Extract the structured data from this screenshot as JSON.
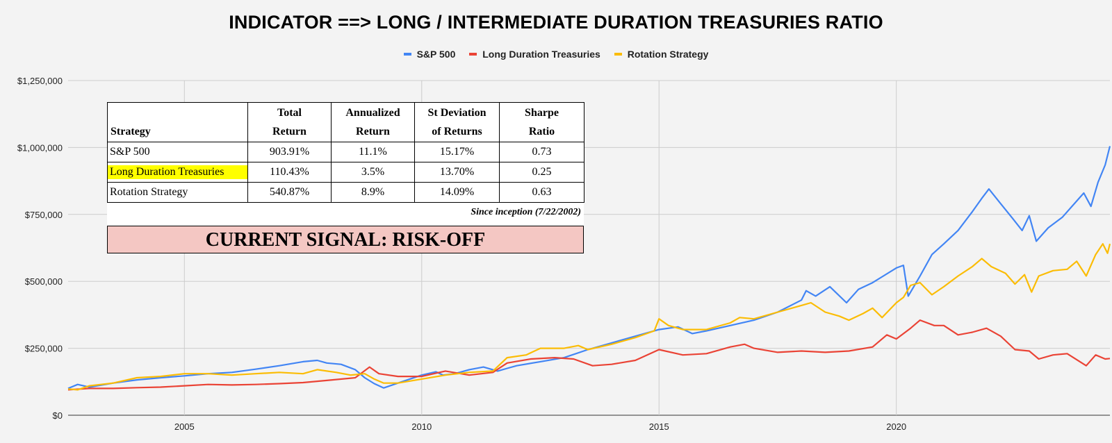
{
  "chart_data": {
    "type": "line",
    "title": "INDICATOR ==> LONG / INTERMEDIATE DURATION TREASURIES RATIO",
    "ylim": [
      0,
      1250000
    ],
    "xlim": [
      2002.55,
      2024.5
    ],
    "y_ticks": [
      {
        "value": 0,
        "label": "$0"
      },
      {
        "value": 250000,
        "label": "$250,000"
      },
      {
        "value": 500000,
        "label": "$500,000"
      },
      {
        "value": 750000,
        "label": "$750,000"
      },
      {
        "value": 1000000,
        "label": "$1,000,000"
      },
      {
        "value": 1250000,
        "label": "$1,250,000"
      }
    ],
    "x_ticks": [
      {
        "value": 2005,
        "label": "2005"
      },
      {
        "value": 2010,
        "label": "2010"
      },
      {
        "value": 2015,
        "label": "2015"
      },
      {
        "value": 2020,
        "label": "2020"
      }
    ],
    "grid": true,
    "legend_position": "top",
    "series": [
      {
        "name": "S&P 500",
        "color": "#4285f4",
        "points": [
          [
            2002.55,
            100000
          ],
          [
            2002.75,
            115000
          ],
          [
            2003.0,
            105000
          ],
          [
            2003.5,
            120000
          ],
          [
            2004.0,
            132000
          ],
          [
            2004.5,
            140000
          ],
          [
            2005.0,
            147000
          ],
          [
            2005.5,
            155000
          ],
          [
            2006.0,
            160000
          ],
          [
            2006.5,
            172000
          ],
          [
            2007.0,
            185000
          ],
          [
            2007.5,
            200000
          ],
          [
            2007.8,
            205000
          ],
          [
            2008.0,
            195000
          ],
          [
            2008.3,
            190000
          ],
          [
            2008.6,
            170000
          ],
          [
            2008.8,
            140000
          ],
          [
            2009.0,
            118000
          ],
          [
            2009.2,
            102000
          ],
          [
            2009.5,
            120000
          ],
          [
            2010.0,
            150000
          ],
          [
            2010.3,
            162000
          ],
          [
            2010.45,
            150000
          ],
          [
            2010.7,
            155000
          ],
          [
            2011.0,
            170000
          ],
          [
            2011.3,
            180000
          ],
          [
            2011.6,
            165000
          ],
          [
            2011.8,
            175000
          ],
          [
            2012.0,
            185000
          ],
          [
            2012.5,
            200000
          ],
          [
            2013.0,
            215000
          ],
          [
            2013.5,
            245000
          ],
          [
            2014.0,
            270000
          ],
          [
            2014.5,
            295000
          ],
          [
            2015.0,
            320000
          ],
          [
            2015.4,
            330000
          ],
          [
            2015.7,
            305000
          ],
          [
            2016.0,
            315000
          ],
          [
            2016.5,
            335000
          ],
          [
            2017.0,
            355000
          ],
          [
            2017.5,
            385000
          ],
          [
            2018.0,
            430000
          ],
          [
            2018.1,
            465000
          ],
          [
            2018.3,
            445000
          ],
          [
            2018.6,
            480000
          ],
          [
            2018.95,
            420000
          ],
          [
            2019.2,
            470000
          ],
          [
            2019.5,
            495000
          ],
          [
            2020.0,
            550000
          ],
          [
            2020.15,
            560000
          ],
          [
            2020.25,
            445000
          ],
          [
            2020.5,
            520000
          ],
          [
            2020.75,
            600000
          ],
          [
            2021.0,
            640000
          ],
          [
            2021.3,
            690000
          ],
          [
            2021.6,
            760000
          ],
          [
            2021.8,
            810000
          ],
          [
            2021.95,
            845000
          ],
          [
            2022.2,
            790000
          ],
          [
            2022.45,
            735000
          ],
          [
            2022.65,
            690000
          ],
          [
            2022.8,
            745000
          ],
          [
            2022.95,
            650000
          ],
          [
            2023.2,
            700000
          ],
          [
            2023.5,
            740000
          ],
          [
            2023.8,
            800000
          ],
          [
            2023.95,
            830000
          ],
          [
            2024.1,
            780000
          ],
          [
            2024.25,
            870000
          ],
          [
            2024.4,
            935000
          ],
          [
            2024.5,
            1005000
          ]
        ]
      },
      {
        "name": "Long Duration Treasuries",
        "color": "#ea4335",
        "points": [
          [
            2002.55,
            95000
          ],
          [
            2003.0,
            100000
          ],
          [
            2003.5,
            100000
          ],
          [
            2004.0,
            103000
          ],
          [
            2004.5,
            105000
          ],
          [
            2005.0,
            110000
          ],
          [
            2005.5,
            115000
          ],
          [
            2006.0,
            113000
          ],
          [
            2006.5,
            115000
          ],
          [
            2007.0,
            118000
          ],
          [
            2007.5,
            122000
          ],
          [
            2008.0,
            130000
          ],
          [
            2008.6,
            140000
          ],
          [
            2008.9,
            180000
          ],
          [
            2009.1,
            155000
          ],
          [
            2009.5,
            145000
          ],
          [
            2010.0,
            145000
          ],
          [
            2010.5,
            165000
          ],
          [
            2011.0,
            150000
          ],
          [
            2011.5,
            160000
          ],
          [
            2011.8,
            195000
          ],
          [
            2012.3,
            210000
          ],
          [
            2012.8,
            215000
          ],
          [
            2013.2,
            210000
          ],
          [
            2013.6,
            185000
          ],
          [
            2014.0,
            190000
          ],
          [
            2014.5,
            205000
          ],
          [
            2015.0,
            245000
          ],
          [
            2015.5,
            225000
          ],
          [
            2016.0,
            230000
          ],
          [
            2016.5,
            255000
          ],
          [
            2016.8,
            265000
          ],
          [
            2017.0,
            250000
          ],
          [
            2017.5,
            235000
          ],
          [
            2018.0,
            240000
          ],
          [
            2018.5,
            235000
          ],
          [
            2019.0,
            240000
          ],
          [
            2019.5,
            255000
          ],
          [
            2019.8,
            300000
          ],
          [
            2020.0,
            285000
          ],
          [
            2020.3,
            325000
          ],
          [
            2020.5,
            355000
          ],
          [
            2020.8,
            335000
          ],
          [
            2021.0,
            335000
          ],
          [
            2021.3,
            300000
          ],
          [
            2021.6,
            310000
          ],
          [
            2021.9,
            325000
          ],
          [
            2022.2,
            295000
          ],
          [
            2022.5,
            245000
          ],
          [
            2022.8,
            240000
          ],
          [
            2023.0,
            210000
          ],
          [
            2023.3,
            225000
          ],
          [
            2023.6,
            230000
          ],
          [
            2024.0,
            185000
          ],
          [
            2024.2,
            225000
          ],
          [
            2024.4,
            210000
          ],
          [
            2024.5,
            212000
          ]
        ]
      },
      {
        "name": "Rotation Strategy",
        "color": "#fbbc04",
        "points": [
          [
            2002.55,
            98000
          ],
          [
            2002.75,
            95000
          ],
          [
            2003.0,
            110000
          ],
          [
            2003.5,
            120000
          ],
          [
            2004.0,
            140000
          ],
          [
            2004.5,
            145000
          ],
          [
            2005.0,
            155000
          ],
          [
            2005.5,
            155000
          ],
          [
            2006.0,
            150000
          ],
          [
            2006.5,
            155000
          ],
          [
            2007.0,
            160000
          ],
          [
            2007.5,
            155000
          ],
          [
            2007.8,
            170000
          ],
          [
            2008.2,
            160000
          ],
          [
            2008.5,
            150000
          ],
          [
            2008.8,
            155000
          ],
          [
            2009.0,
            135000
          ],
          [
            2009.2,
            120000
          ],
          [
            2009.5,
            120000
          ],
          [
            2010.0,
            135000
          ],
          [
            2010.5,
            150000
          ],
          [
            2011.0,
            160000
          ],
          [
            2011.5,
            165000
          ],
          [
            2011.8,
            215000
          ],
          [
            2012.2,
            225000
          ],
          [
            2012.5,
            250000
          ],
          [
            2013.0,
            250000
          ],
          [
            2013.3,
            260000
          ],
          [
            2013.5,
            245000
          ],
          [
            2014.0,
            265000
          ],
          [
            2014.5,
            290000
          ],
          [
            2014.9,
            315000
          ],
          [
            2015.0,
            360000
          ],
          [
            2015.2,
            335000
          ],
          [
            2015.5,
            320000
          ],
          [
            2016.0,
            320000
          ],
          [
            2016.5,
            345000
          ],
          [
            2016.7,
            365000
          ],
          [
            2017.0,
            360000
          ],
          [
            2017.5,
            385000
          ],
          [
            2018.0,
            410000
          ],
          [
            2018.2,
            420000
          ],
          [
            2018.5,
            385000
          ],
          [
            2018.8,
            370000
          ],
          [
            2019.0,
            355000
          ],
          [
            2019.3,
            380000
          ],
          [
            2019.5,
            400000
          ],
          [
            2019.7,
            365000
          ],
          [
            2020.0,
            420000
          ],
          [
            2020.15,
            440000
          ],
          [
            2020.3,
            485000
          ],
          [
            2020.5,
            495000
          ],
          [
            2020.75,
            450000
          ],
          [
            2021.0,
            480000
          ],
          [
            2021.3,
            520000
          ],
          [
            2021.6,
            555000
          ],
          [
            2021.8,
            585000
          ],
          [
            2022.0,
            555000
          ],
          [
            2022.3,
            530000
          ],
          [
            2022.5,
            490000
          ],
          [
            2022.7,
            525000
          ],
          [
            2022.85,
            460000
          ],
          [
            2023.0,
            520000
          ],
          [
            2023.3,
            540000
          ],
          [
            2023.6,
            545000
          ],
          [
            2023.8,
            575000
          ],
          [
            2024.0,
            520000
          ],
          [
            2024.2,
            600000
          ],
          [
            2024.35,
            640000
          ],
          [
            2024.45,
            605000
          ],
          [
            2024.5,
            640000
          ]
        ]
      }
    ]
  },
  "stats_table": {
    "headers": [
      {
        "line1": "",
        "line2": "Strategy"
      },
      {
        "line1": "Total",
        "line2": "Return"
      },
      {
        "line1": "Annualized",
        "line2": "Return"
      },
      {
        "line1": "St Deviation",
        "line2": "of Returns"
      },
      {
        "line1": "Sharpe",
        "line2": "Ratio"
      }
    ],
    "rows": [
      {
        "strategy": "S&P 500",
        "total_return": "903.91%",
        "annualized_return": "11.1%",
        "st_deviation": "15.17%",
        "sharpe_ratio": "0.73"
      },
      {
        "strategy": "Long Duration Treasuries",
        "total_return": "110.43%",
        "annualized_return": "3.5%",
        "st_deviation": "13.70%",
        "sharpe_ratio": "0.25"
      },
      {
        "strategy": "Rotation Strategy",
        "total_return": "540.87%",
        "annualized_return": "8.9%",
        "st_deviation": "14.09%",
        "sharpe_ratio": "0.63"
      }
    ],
    "since_inception": "Since inception (7/22/2002)",
    "current_signal": "CURRENT SIGNAL: RISK-OFF",
    "highlight_color": "#ffff00",
    "signal_bg_color": "#f4c7c3"
  }
}
